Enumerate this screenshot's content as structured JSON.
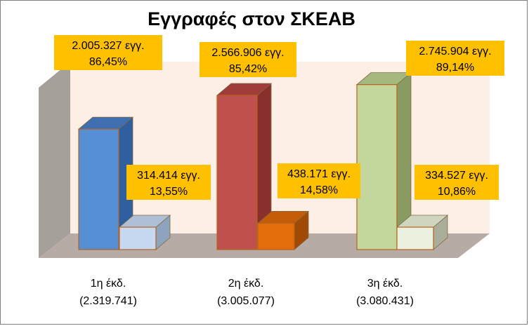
{
  "chart_data": {
    "type": "bar",
    "title": "Εγγραφές στον ΣΚΕΑΒ",
    "categories": [
      "1η έκδ.",
      "2η έκδ.",
      "3η έκδ."
    ],
    "category_totals": [
      "(2.319.741)",
      "(3.005.077)",
      "(3.080.431)"
    ],
    "series": [
      {
        "name": "main",
        "values": [
          2005327,
          2566906,
          2745904
        ],
        "labels": [
          "2.005.327 εγγ.",
          "2.566.906 εγγ.",
          "2.745.904 εγγ."
        ],
        "percents": [
          "86,45%",
          "85,42%",
          "89,14%"
        ],
        "colors": [
          "#558ed5",
          "#c0504d",
          "#c3d69b"
        ],
        "side_colors": [
          "#2f5f9e",
          "#8b2f2c",
          "#8a9a63"
        ],
        "top_colors": [
          "#3f6fb0",
          "#a03c39",
          "#a5b87e"
        ]
      },
      {
        "name": "secondary",
        "values": [
          314414,
          438171,
          334527
        ],
        "labels": [
          "314.414 εγγ.",
          "438.171 εγγ.",
          "334.527 εγγ."
        ],
        "percents": [
          "13,55%",
          "14,58%",
          "10,86%"
        ],
        "colors": [
          "#c6d9f1",
          "#e46c0a",
          "#ebf1de"
        ],
        "side_colors": [
          "#8ea3bd",
          "#a04a05",
          "#a9ad9a"
        ],
        "top_colors": [
          "#aebfd6",
          "#c45c08",
          "#cfd6c0"
        ]
      }
    ],
    "ylim": [
      0,
      2800000
    ],
    "label_bg": "#ffc000",
    "wall_color": "#fdeee6",
    "floor_color": "#b7aba5",
    "side_wall_color": "#a6a09b"
  }
}
